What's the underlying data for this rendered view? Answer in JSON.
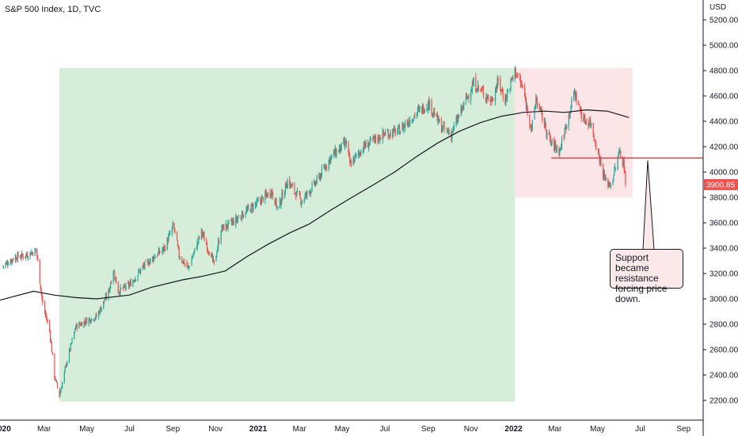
{
  "header": {
    "title": "S&P 500 Index, 1D, TVC"
  },
  "axis": {
    "currency": "USD"
  },
  "annotation": {
    "text": "Support became resistance forcing price down."
  },
  "colors": {
    "up": "#26a69a",
    "down": "#ef5350",
    "green_zone": "#d5edd9",
    "red_zone": "#fbe5e6",
    "support_line": "#f23645",
    "ma_line": "#131722",
    "price_tag": "#ef5350"
  },
  "chart_data": {
    "type": "candlestick",
    "title": "S&P 500 Index, 1D, TVC",
    "ylabel": "USD",
    "ylim": [
      2050,
      5400
    ],
    "y_ticks": [
      2200,
      2400,
      2600,
      2800,
      3000,
      3200,
      3400,
      3600,
      3800,
      4000,
      4200,
      4400,
      4600,
      4800,
      5000,
      5200
    ],
    "y_tick_labels": [
      "2200.00",
      "2400.00",
      "2600.00",
      "2800.00",
      "3000.00",
      "3200.00",
      "3400.00",
      "3600.00",
      "3800.00",
      "4000.00",
      "4200.00",
      "4400.00",
      "4600.00",
      "4800.00",
      "5000.00",
      "5200.00"
    ],
    "x_range": [
      "2019-12-29",
      "2022-09-29"
    ],
    "x_ticks": [
      {
        "date": "2020-01-01",
        "label": "2020",
        "bold": true
      },
      {
        "date": "2020-03-01",
        "label": "Mar"
      },
      {
        "date": "2020-05-01",
        "label": "May"
      },
      {
        "date": "2020-07-01",
        "label": "Jul"
      },
      {
        "date": "2020-09-01",
        "label": "Sep"
      },
      {
        "date": "2020-11-01",
        "label": "Nov"
      },
      {
        "date": "2021-01-01",
        "label": "2021",
        "bold": true
      },
      {
        "date": "2021-03-01",
        "label": "Mar"
      },
      {
        "date": "2021-05-01",
        "label": "May"
      },
      {
        "date": "2021-07-01",
        "label": "Jul"
      },
      {
        "date": "2021-09-01",
        "label": "Sep"
      },
      {
        "date": "2021-11-01",
        "label": "Nov"
      },
      {
        "date": "2022-01-01",
        "label": "2022",
        "bold": true
      },
      {
        "date": "2022-03-01",
        "label": "Mar"
      },
      {
        "date": "2022-05-01",
        "label": "May"
      },
      {
        "date": "2022-07-01",
        "label": "Jul"
      },
      {
        "date": "2022-09-01",
        "label": "Sep"
      }
    ],
    "close_series": [
      [
        "2020-01-02",
        3260
      ],
      [
        "2020-01-20",
        3330
      ],
      [
        "2020-02-05",
        3345
      ],
      [
        "2020-02-19",
        3386
      ],
      [
        "2020-02-28",
        2955
      ],
      [
        "2020-03-09",
        2750
      ],
      [
        "2020-03-16",
        2390
      ],
      [
        "2020-03-23",
        2237
      ],
      [
        "2020-04-01",
        2470
      ],
      [
        "2020-04-15",
        2780
      ],
      [
        "2020-05-01",
        2830
      ],
      [
        "2020-05-15",
        2860
      ],
      [
        "2020-06-01",
        3050
      ],
      [
        "2020-06-08",
        3230
      ],
      [
        "2020-06-15",
        3060
      ],
      [
        "2020-07-01",
        3110
      ],
      [
        "2020-07-20",
        3250
      ],
      [
        "2020-08-05",
        3330
      ],
      [
        "2020-08-20",
        3400
      ],
      [
        "2020-09-02",
        3580
      ],
      [
        "2020-09-10",
        3340
      ],
      [
        "2020-09-23",
        3240
      ],
      [
        "2020-10-12",
        3530
      ],
      [
        "2020-10-30",
        3270
      ],
      [
        "2020-11-09",
        3550
      ],
      [
        "2020-11-30",
        3620
      ],
      [
        "2020-12-15",
        3690
      ],
      [
        "2020-12-31",
        3756
      ],
      [
        "2021-01-20",
        3850
      ],
      [
        "2021-01-29",
        3710
      ],
      [
        "2021-02-12",
        3930
      ],
      [
        "2021-03-04",
        3770
      ],
      [
        "2021-03-25",
        3920
      ],
      [
        "2021-04-15",
        4120
      ],
      [
        "2021-05-07",
        4230
      ],
      [
        "2021-05-12",
        4060
      ],
      [
        "2021-06-01",
        4200
      ],
      [
        "2021-06-30",
        4300
      ],
      [
        "2021-07-20",
        4320
      ],
      [
        "2021-08-16",
        4470
      ],
      [
        "2021-09-02",
        4540
      ],
      [
        "2021-09-20",
        4350
      ],
      [
        "2021-10-04",
        4300
      ],
      [
        "2021-10-25",
        4570
      ],
      [
        "2021-11-05",
        4700
      ],
      [
        "2021-11-30",
        4560
      ],
      [
        "2021-12-10",
        4710
      ],
      [
        "2021-12-20",
        4570
      ],
      [
        "2022-01-03",
        4800
      ],
      [
        "2022-01-14",
        4660
      ],
      [
        "2022-01-27",
        4330
      ],
      [
        "2022-02-02",
        4580
      ],
      [
        "2022-02-23",
        4230
      ],
      [
        "2022-03-08",
        4170
      ],
      [
        "2022-03-29",
        4630
      ],
      [
        "2022-04-11",
        4410
      ],
      [
        "2022-04-21",
        4390
      ],
      [
        "2022-05-02",
        4150
      ],
      [
        "2022-05-12",
        3930
      ],
      [
        "2022-05-20",
        3900
      ],
      [
        "2022-06-02",
        4170
      ],
      [
        "2022-06-09",
        4020
      ],
      [
        "2022-06-10",
        3900
      ]
    ],
    "moving_average_200": [
      [
        "2019-12-29",
        2990
      ],
      [
        "2020-02-15",
        3060
      ],
      [
        "2020-03-15",
        3030
      ],
      [
        "2020-04-15",
        3010
      ],
      [
        "2020-05-15",
        3000
      ],
      [
        "2020-07-01",
        3030
      ],
      [
        "2020-08-01",
        3090
      ],
      [
        "2020-09-15",
        3150
      ],
      [
        "2020-10-15",
        3180
      ],
      [
        "2020-11-15",
        3220
      ],
      [
        "2020-12-15",
        3330
      ],
      [
        "2021-01-15",
        3430
      ],
      [
        "2021-02-15",
        3520
      ],
      [
        "2021-03-15",
        3590
      ],
      [
        "2021-04-15",
        3700
      ],
      [
        "2021-05-15",
        3800
      ],
      [
        "2021-06-15",
        3900
      ],
      [
        "2021-07-15",
        4000
      ],
      [
        "2021-08-15",
        4120
      ],
      [
        "2021-09-15",
        4230
      ],
      [
        "2021-10-15",
        4320
      ],
      [
        "2021-11-15",
        4390
      ],
      [
        "2021-12-15",
        4440
      ],
      [
        "2022-01-15",
        4470
      ],
      [
        "2022-02-15",
        4480
      ],
      [
        "2022-03-15",
        4470
      ],
      [
        "2022-04-15",
        4490
      ],
      [
        "2022-05-15",
        4480
      ],
      [
        "2022-06-15",
        4430
      ]
    ],
    "zones": [
      {
        "name": "uptrend",
        "from": "2020-03-23",
        "to": "2022-01-03",
        "low": 2190,
        "high": 4820
      },
      {
        "name": "range",
        "from": "2022-01-03",
        "to": "2022-06-20",
        "low": 3800,
        "high": 4820
      }
    ],
    "support_level": {
      "value": 4110,
      "from": "2022-02-24",
      "to": "2022-09-29"
    },
    "last_price": {
      "value": 3900.85,
      "label": "3900.85"
    },
    "grid": false,
    "legend": "none"
  }
}
